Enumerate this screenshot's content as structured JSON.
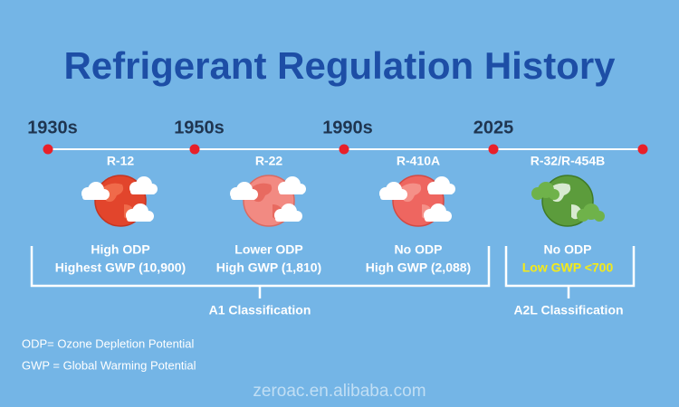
{
  "title": "Refrigerant Regulation History",
  "eras": [
    "1930s",
    "1950s",
    "1990s",
    "2025"
  ],
  "refrigerants": [
    {
      "name": "R-12",
      "odp": "High ODP",
      "gwp": "Highest GWP (10,900)"
    },
    {
      "name": "R-22",
      "odp": "Lower ODP",
      "gwp": "High GWP (1,810)"
    },
    {
      "name": "R-410A",
      "odp": "No ODP",
      "gwp": "High GWP (2,088)"
    },
    {
      "name": "R-32/R-454B",
      "odp": "No ODP",
      "gwp": "Low GWP <700"
    }
  ],
  "groups": [
    "A1 Classification",
    "A2L Classification"
  ],
  "notes": [
    "ODP= Ozone Depletion Potential",
    "GWP = Global Warming Potential"
  ],
  "watermark": "zeroac.en.alibaba.com"
}
